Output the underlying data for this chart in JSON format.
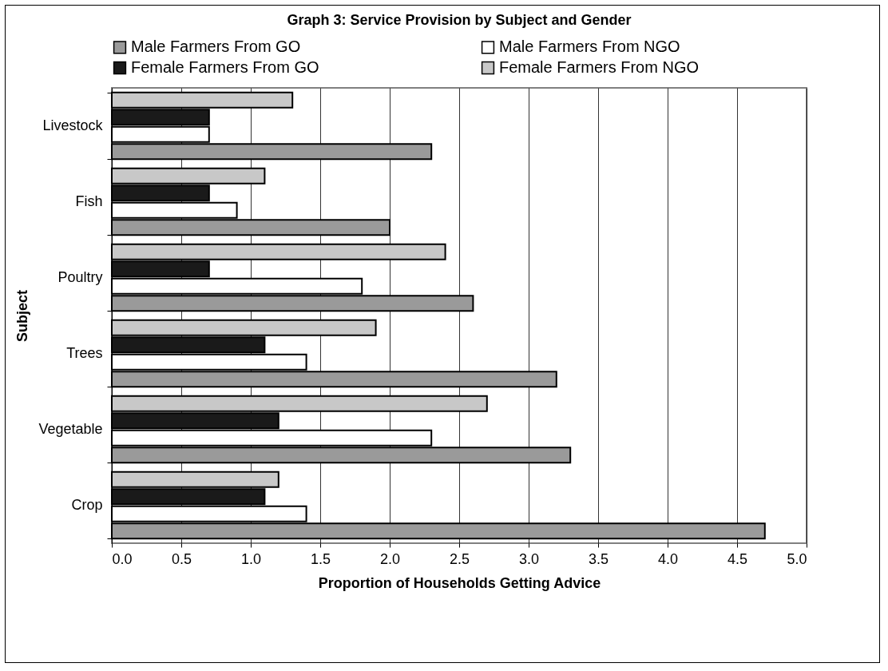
{
  "chart_data": {
    "type": "bar",
    "orientation": "horizontal",
    "title": "Graph 3: Service Provision by Subject and Gender",
    "xlabel": "Proportion of Households Getting Advice",
    "ylabel": "Subject",
    "categories": [
      "Livestock",
      "Fish",
      "Poultry",
      "Trees",
      "Vegetable",
      "Crop"
    ],
    "series": [
      {
        "name": "Male Farmers From GO",
        "color": "#9a9a9a",
        "values": [
          2.3,
          2.0,
          2.6,
          3.2,
          3.3,
          4.7
        ]
      },
      {
        "name": "Male Farmers From NGO",
        "color": "#ffffff",
        "values": [
          0.7,
          0.9,
          1.8,
          1.4,
          2.3,
          1.4
        ]
      },
      {
        "name": "Female Farmers From GO",
        "color": "#1a1a1a",
        "values": [
          0.7,
          0.7,
          0.7,
          1.1,
          1.2,
          1.1
        ]
      },
      {
        "name": "Female Farmers From NGO",
        "color": "#c8c8c8",
        "values": [
          1.3,
          1.1,
          2.4,
          1.9,
          2.7,
          1.2
        ]
      }
    ],
    "xlim": [
      0,
      5
    ],
    "xticks": [
      {
        "value": 0,
        "label": "0.0"
      },
      {
        "value": 0.5,
        "label": "0.5"
      },
      {
        "value": 1,
        "label": "1.0"
      },
      {
        "value": 1.5,
        "label": "1.5"
      },
      {
        "value": 2,
        "label": "2.0"
      },
      {
        "value": 2.5,
        "label": "2.5"
      },
      {
        "value": 3,
        "label": "3.0"
      },
      {
        "value": 3.5,
        "label": "3.5"
      },
      {
        "value": 4,
        "label": "4.0"
      },
      {
        "value": 4.5,
        "label": "4.5"
      },
      {
        "value": 5,
        "label": "5.0"
      }
    ],
    "grid": "x",
    "legend": "top"
  }
}
